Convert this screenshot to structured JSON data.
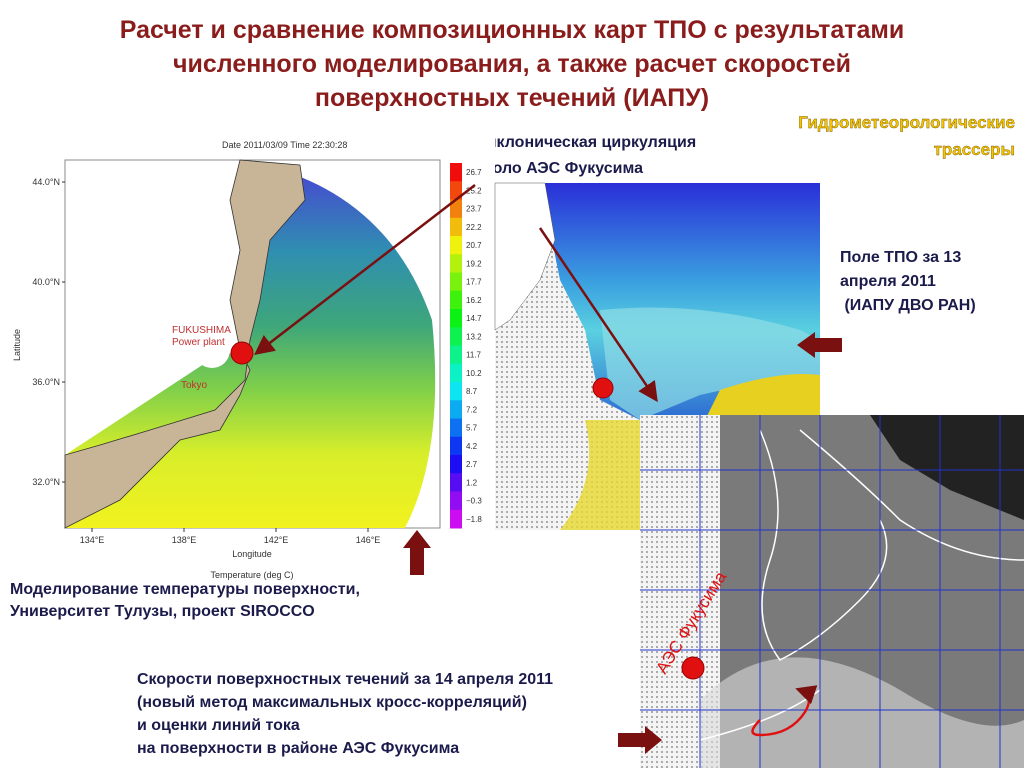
{
  "title": [
    "Расчет и сравнение композиционных карт ТПО с результатами",
    "численного моделирования, а также расчет скоростей",
    "поверхностных течений  (ИАПУ)"
  ],
  "tracers_label": [
    "Гидрометеорологические",
    "трассеры"
  ],
  "cyclone_label": [
    "Циклоническая циркуляция",
    "около АЭС Фукусима"
  ],
  "model_map": {
    "header": "Date 2011/03/09  Time 22:30:28",
    "y_label": "Latitude",
    "yticks": [
      "44.0°N",
      "40.0°N",
      "36.0°N",
      "32.0°N"
    ],
    "x_label": "Longitude",
    "xticks": [
      "134°E",
      "138°E",
      "142°E",
      "146°E"
    ],
    "colorbar_title": "Temperature (deg C)",
    "colorbar_ticks": [
      "26.7",
      "25.2",
      "23.7",
      "22.2",
      "20.7",
      "19.2",
      "17.7",
      "16.2",
      "14.7",
      "13.2",
      "11.7",
      "10.2",
      "8.7",
      "7.2",
      "5.7",
      "4.2",
      "2.7",
      "1.2",
      "−0.3",
      "−1.8"
    ],
    "plant_label": [
      "FUKUSHIMA",
      "Power plant"
    ],
    "city_label": "Tokyo"
  },
  "model_caption": [
    "Моделирование температуры поверхности,",
    "Университет Тулузы, проект SIROCCO"
  ],
  "sst_caption": [
    "Поле ТПО за 13",
    "апреля 2011",
    " (ИАПУ ДВО РАН)"
  ],
  "currents_map": {
    "plant_label": "АЭС Фукусима"
  },
  "currents_caption": [
    "Скорости поверхностных течений за 14 апреля 2011",
    "(новый метод максимальных кросс-корреляций)",
    "и оценки линий тока",
    "на поверхности в районе АЭС Фукусима"
  ]
}
